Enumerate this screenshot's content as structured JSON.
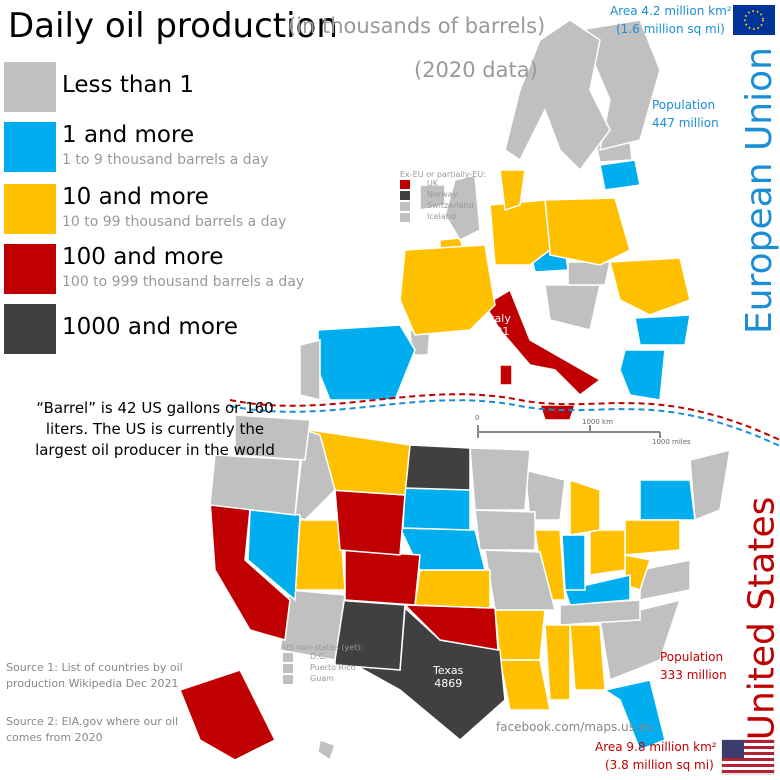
{
  "header": {
    "title": "Daily oil production",
    "subtitle": "(in thousands of barrels)",
    "year_note": "(2020 data)"
  },
  "legend": [
    {
      "label": "Less than 1",
      "color": "#c0c0c0"
    },
    {
      "label": "1 and more",
      "sublabel": "1 to 9 thousand barrels a day",
      "color": "#00aeef"
    },
    {
      "label": "10 and more",
      "sublabel": "10 to 99 thousand barrels a day",
      "color": "#ffc000"
    },
    {
      "label": "100 and more",
      "sublabel": "100 to 999 thousand barrels a day",
      "color": "#c00000"
    },
    {
      "label": "1000 and more",
      "color": "#404040"
    }
  ],
  "note": "“Barrel” is 42 US gallons or 160 liters. The US is currently the largest oil producer in the world",
  "sources": [
    "Source 1: List of countries by oil production Wikipedia Dec 2021",
    "Source 2: EIA.gov where our oil comes from 2020"
  ],
  "eu": {
    "area": "Area 4.2 million km²",
    "area_imperial": "(1.6 million sq mi)",
    "population_label": "Population",
    "population": "447 million",
    "name": "European Union"
  },
  "us": {
    "area": "Area 9.8 million km²",
    "area_imperial": "(3.8 million sq mi)",
    "population_label": "Population",
    "population": "333 million",
    "name": "United States"
  },
  "labels": {
    "italy": {
      "name": "Italy",
      "value": "101"
    },
    "texas": {
      "name": "Texas",
      "value": "4869"
    }
  },
  "ex_eu": {
    "title": "Ex-EU or partially-EU:",
    "items": [
      "UK",
      "Norway",
      "Switzerland",
      "Iceland"
    ]
  },
  "us_non_states": {
    "title": "US non-states (yet):",
    "items": [
      "D.C.",
      "Puerto Rico",
      "Guam"
    ]
  },
  "scale": {
    "zero": "0",
    "km": "1000 km",
    "miles": "1000 miles"
  },
  "credit": "facebook.com/maps.us.eu"
}
